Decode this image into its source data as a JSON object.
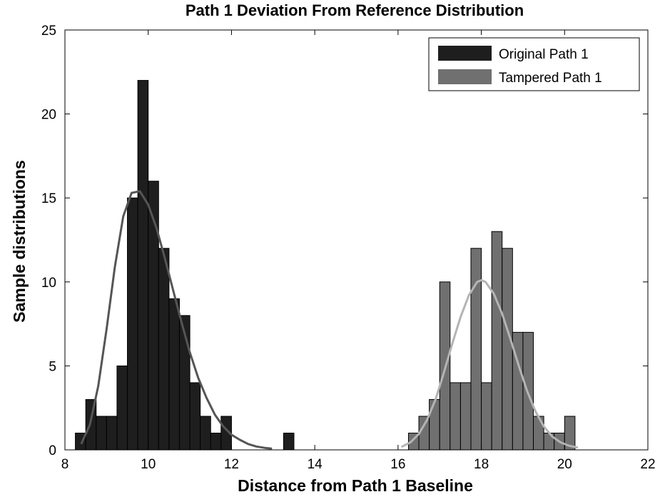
{
  "chart_data": {
    "type": "bar",
    "title": "Path 1 Deviation From Reference Distribution",
    "xlabel": "Distance from Path 1 Baseline",
    "ylabel": "Sample distributions",
    "xlim": [
      8,
      22
    ],
    "ylim": [
      0,
      25
    ],
    "xticks": [
      "8",
      "10",
      "12",
      "14",
      "16",
      "18",
      "20",
      "22"
    ],
    "yticks": [
      "0",
      "5",
      "10",
      "15",
      "20",
      "25"
    ],
    "grid": false,
    "legend_position": "top-right",
    "bin_width": 0.25,
    "series": [
      {
        "name": "Original Path 1",
        "color": "#1e1e1e",
        "bins": [
          {
            "x0": 8.25,
            "value": 1
          },
          {
            "x0": 8.5,
            "value": 3
          },
          {
            "x0": 8.75,
            "value": 2
          },
          {
            "x0": 9.0,
            "value": 2
          },
          {
            "x0": 9.25,
            "value": 5
          },
          {
            "x0": 9.5,
            "value": 15
          },
          {
            "x0": 9.75,
            "value": 22
          },
          {
            "x0": 10.0,
            "value": 16
          },
          {
            "x0": 10.25,
            "value": 12
          },
          {
            "x0": 10.5,
            "value": 9
          },
          {
            "x0": 10.75,
            "value": 8
          },
          {
            "x0": 11.0,
            "value": 4
          },
          {
            "x0": 11.25,
            "value": 2
          },
          {
            "x0": 11.5,
            "value": 1
          },
          {
            "x0": 11.75,
            "value": 2
          },
          {
            "x0": 13.25,
            "value": 1
          }
        ],
        "fit_curve": {
          "color": "#555555",
          "points": [
            [
              8.4,
              0.4
            ],
            [
              8.6,
              1.5
            ],
            [
              8.8,
              3.8
            ],
            [
              9.0,
              7.2
            ],
            [
              9.2,
              10.9
            ],
            [
              9.4,
              13.9
            ],
            [
              9.6,
              15.3
            ],
            [
              9.8,
              15.4
            ],
            [
              10.0,
              14.6
            ],
            [
              10.2,
              13.2
            ],
            [
              10.4,
              11.4
            ],
            [
              10.6,
              9.5
            ],
            [
              10.8,
              7.6
            ],
            [
              11.0,
              5.8
            ],
            [
              11.2,
              4.3
            ],
            [
              11.4,
              3.1
            ],
            [
              11.6,
              2.1
            ],
            [
              11.8,
              1.4
            ],
            [
              12.0,
              0.9
            ],
            [
              12.2,
              0.6
            ],
            [
              12.4,
              0.35
            ],
            [
              12.6,
              0.2
            ],
            [
              12.8,
              0.12
            ],
            [
              12.95,
              0.08
            ]
          ]
        }
      },
      {
        "name": "Tampered Path 1",
        "color": "#707070",
        "bins": [
          {
            "x0": 16.25,
            "value": 1
          },
          {
            "x0": 16.5,
            "value": 2
          },
          {
            "x0": 16.75,
            "value": 3
          },
          {
            "x0": 17.0,
            "value": 10
          },
          {
            "x0": 17.25,
            "value": 4
          },
          {
            "x0": 17.5,
            "value": 4
          },
          {
            "x0": 17.75,
            "value": 12
          },
          {
            "x0": 18.0,
            "value": 4
          },
          {
            "x0": 18.25,
            "value": 13
          },
          {
            "x0": 18.5,
            "value": 12
          },
          {
            "x0": 18.75,
            "value": 7
          },
          {
            "x0": 19.0,
            "value": 7
          },
          {
            "x0": 19.25,
            "value": 2
          },
          {
            "x0": 19.5,
            "value": 1
          },
          {
            "x0": 19.75,
            "value": 1
          },
          {
            "x0": 20.0,
            "value": 2
          }
        ],
        "fit_curve": {
          "color": "#b4b4b4",
          "points": [
            [
              16.1,
              0.2
            ],
            [
              16.3,
              0.45
            ],
            [
              16.5,
              0.95
            ],
            [
              16.7,
              1.8
            ],
            [
              16.9,
              3.0
            ],
            [
              17.1,
              4.6
            ],
            [
              17.3,
              6.3
            ],
            [
              17.5,
              7.9
            ],
            [
              17.7,
              9.2
            ],
            [
              17.9,
              10.0
            ],
            [
              18.0,
              10.1
            ],
            [
              18.1,
              10.0
            ],
            [
              18.3,
              9.3
            ],
            [
              18.5,
              8.1
            ],
            [
              18.7,
              6.6
            ],
            [
              18.9,
              5.0
            ],
            [
              19.1,
              3.5
            ],
            [
              19.3,
              2.3
            ],
            [
              19.5,
              1.4
            ],
            [
              19.7,
              0.8
            ],
            [
              19.9,
              0.45
            ],
            [
              20.1,
              0.25
            ],
            [
              20.3,
              0.15
            ]
          ]
        }
      }
    ]
  }
}
